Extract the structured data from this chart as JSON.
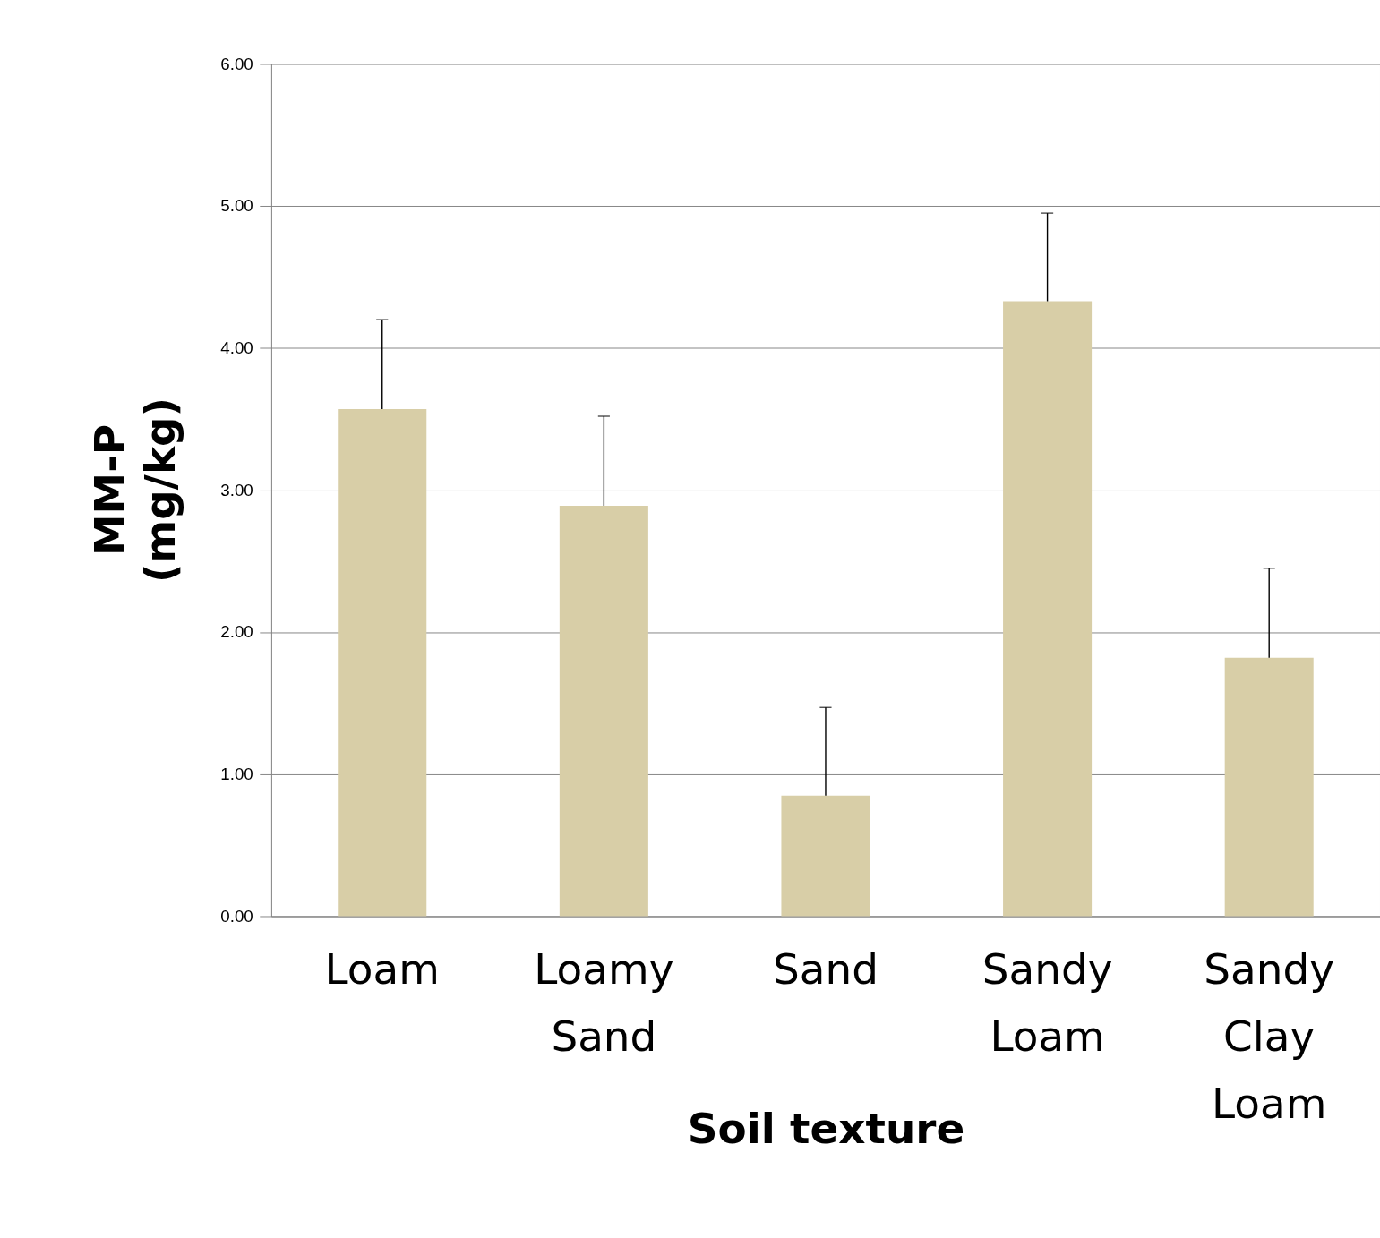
{
  "chart_data": {
    "type": "bar",
    "xlabel": "Soil texture",
    "ylabel": "MM-P (mg/kg)",
    "categories": [
      "Loam",
      "Loamy Sand",
      "Sand",
      "Sandy Loam",
      "Sandy Clay Loam"
    ],
    "values": [
      3.57,
      2.89,
      0.85,
      4.33,
      1.82
    ],
    "errors": [
      [
        3.57,
        4.2
      ],
      [
        2.89,
        3.52
      ],
      [
        0.85,
        1.47
      ],
      [
        4.33,
        4.95
      ],
      [
        1.82,
        2.45
      ]
    ],
    "color": "#d8cea7",
    "ylim": [
      0,
      6
    ],
    "yticks": [
      {
        "value": 0,
        "label": "0.00"
      },
      {
        "value": 1,
        "label": "1.00"
      },
      {
        "value": 2,
        "label": "2.00"
      },
      {
        "value": 3,
        "label": "3.00"
      },
      {
        "value": 4,
        "label": "4.00"
      },
      {
        "value": 5,
        "label": "5.00"
      },
      {
        "value": 6,
        "label": "6.00"
      }
    ],
    "grid": "y"
  }
}
